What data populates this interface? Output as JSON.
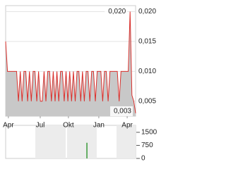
{
  "chart_data": [
    {
      "type": "line",
      "values": [
        0.015,
        0.01,
        0.01,
        0.01,
        0.01,
        0.01,
        0.01,
        0.005,
        0.01,
        0.005,
        0.01,
        0.01,
        0.005,
        0.01,
        0.005,
        0.01,
        0.01,
        0.005,
        0.01,
        0.005,
        0.005,
        0.01,
        0.005,
        0.01,
        0.01,
        0.005,
        0.01,
        0.005,
        0.01,
        0.005,
        0.01,
        0.01,
        0.005,
        0.01,
        0.005,
        0.01,
        0.005,
        0.01,
        0.005,
        0.01,
        0.01,
        0.005,
        0.01,
        0.005,
        0.01,
        0.01,
        0.005,
        0.01,
        0.01,
        0.005,
        0.01,
        0.01,
        0.01,
        0.005,
        0.01,
        0.01,
        0.005,
        0.01,
        0.01,
        0.01,
        0.01,
        0.01,
        0.005,
        0.01,
        0.01,
        0.01,
        0.01,
        0.01,
        0.02,
        0.006,
        0.005,
        0.003
      ],
      "value_labels": [
        null,
        null,
        null,
        null,
        null,
        null,
        null,
        null,
        null,
        null,
        null,
        null,
        null,
        null,
        null,
        null,
        null,
        null,
        null,
        null,
        null,
        null,
        null,
        null,
        null,
        null,
        null,
        null,
        null,
        null,
        null,
        null,
        null,
        null,
        null,
        null,
        null,
        null,
        null,
        null,
        null,
        null,
        null,
        null,
        null,
        null,
        null,
        null,
        null,
        null,
        null,
        null,
        null,
        null,
        null,
        null,
        null,
        null,
        null,
        null,
        null,
        null,
        null,
        null,
        null,
        null,
        null,
        null,
        "0,020",
        null,
        null,
        "0,003"
      ],
      "color": "#d9302c",
      "area_color": "#c8c8c8",
      "xlim": [
        0,
        71
      ],
      "xticks": [
        {
          "value": 1.5,
          "label": "Apr"
        },
        {
          "value": 18.9,
          "label": "Jul"
        },
        {
          "value": 34.3,
          "label": "Okt"
        },
        {
          "value": 50.9,
          "label": "Jan"
        },
        {
          "value": 66.4,
          "label": "Apr"
        }
      ],
      "ylim": [
        0.0025,
        0.021
      ],
      "yticks": [
        {
          "value": 0.02,
          "label": "0,020"
        },
        {
          "value": 0.015,
          "label": "0,015"
        },
        {
          "value": 0.01,
          "label": "0,010"
        },
        {
          "value": 0.005,
          "label": "0,005"
        }
      ],
      "grid": true
    },
    {
      "type": "bar",
      "x": [
        44.4
      ],
      "values": [
        900
      ],
      "color": "#3a9a3a",
      "xlim": [
        0,
        71
      ],
      "ylim": [
        0,
        1900
      ],
      "yticks": [
        1500,
        750,
        0
      ]
    }
  ]
}
